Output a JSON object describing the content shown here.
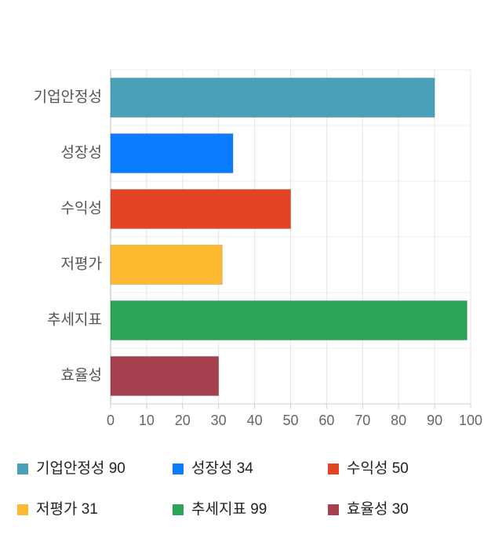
{
  "chart_data": {
    "type": "bar",
    "orientation": "horizontal",
    "categories": [
      "기업안정성",
      "성장성",
      "수익성",
      "저평가",
      "추세지표",
      "효율성"
    ],
    "values": [
      90,
      34,
      50,
      31,
      99,
      30
    ],
    "colors": [
      "#4aa0b8",
      "#0a7cff",
      "#e24424",
      "#fdb92f",
      "#2aa555",
      "#a5404f"
    ],
    "xlim": [
      0,
      100
    ],
    "xticks": [
      0,
      10,
      20,
      30,
      40,
      50,
      60,
      70,
      80,
      90,
      100
    ],
    "grid": true
  }
}
